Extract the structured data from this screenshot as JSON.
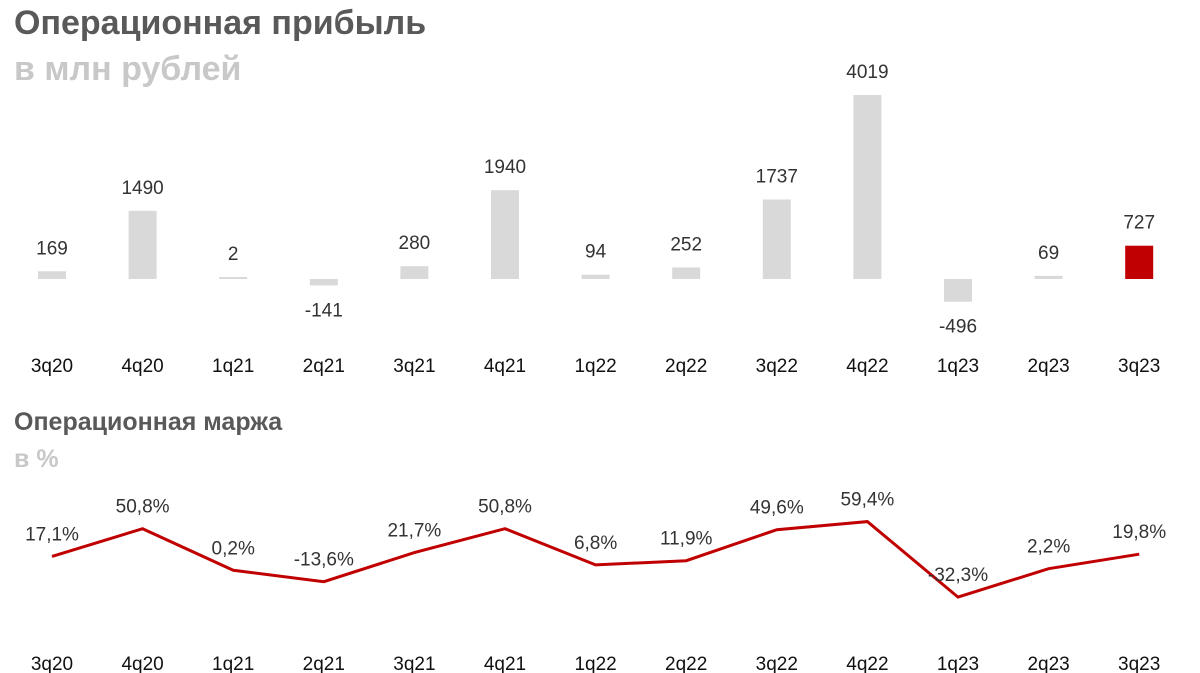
{
  "chart_data": [
    {
      "type": "bar",
      "title": "Операционная прибыль",
      "subtitle": "в млн рублей",
      "categories": [
        "3q20",
        "4q20",
        "1q21",
        "2q21",
        "3q21",
        "4q21",
        "1q22",
        "2q22",
        "3q22",
        "4q22",
        "1q23",
        "2q23",
        "3q23"
      ],
      "values": [
        169,
        1490,
        2,
        -141,
        280,
        1940,
        94,
        252,
        1737,
        4019,
        -496,
        69,
        727
      ],
      "value_labels": [
        "169",
        "1490",
        "2",
        "-141",
        "280",
        "1940",
        "94",
        "252",
        "1737",
        "4019",
        "-496",
        "69",
        "727"
      ],
      "colors": {
        "default": "#d9d9d9",
        "highlight": "#c00000"
      },
      "highlight_index": 12,
      "grid": false,
      "legend": "none"
    },
    {
      "type": "line",
      "title": "Операционная маржа",
      "subtitle": "в %",
      "categories": [
        "3q20",
        "4q20",
        "1q21",
        "2q21",
        "3q21",
        "4q21",
        "1q22",
        "2q22",
        "3q22",
        "4q22",
        "1q23",
        "2q23",
        "3q23"
      ],
      "values": [
        17.1,
        50.8,
        0.2,
        -13.6,
        21.7,
        50.8,
        6.8,
        11.9,
        49.6,
        59.4,
        -32.3,
        2.2,
        19.8
      ],
      "value_labels": [
        "17,1%",
        "50,8%",
        "0,2%",
        "-13,6%",
        "21,7%",
        "50,8%",
        "6,8%",
        "11,9%",
        "49,6%",
        "59,4%",
        "-32,3%",
        "2,2%",
        "19,8%"
      ],
      "colors": {
        "line": "#c00000"
      },
      "grid": false,
      "legend": "none"
    }
  ]
}
